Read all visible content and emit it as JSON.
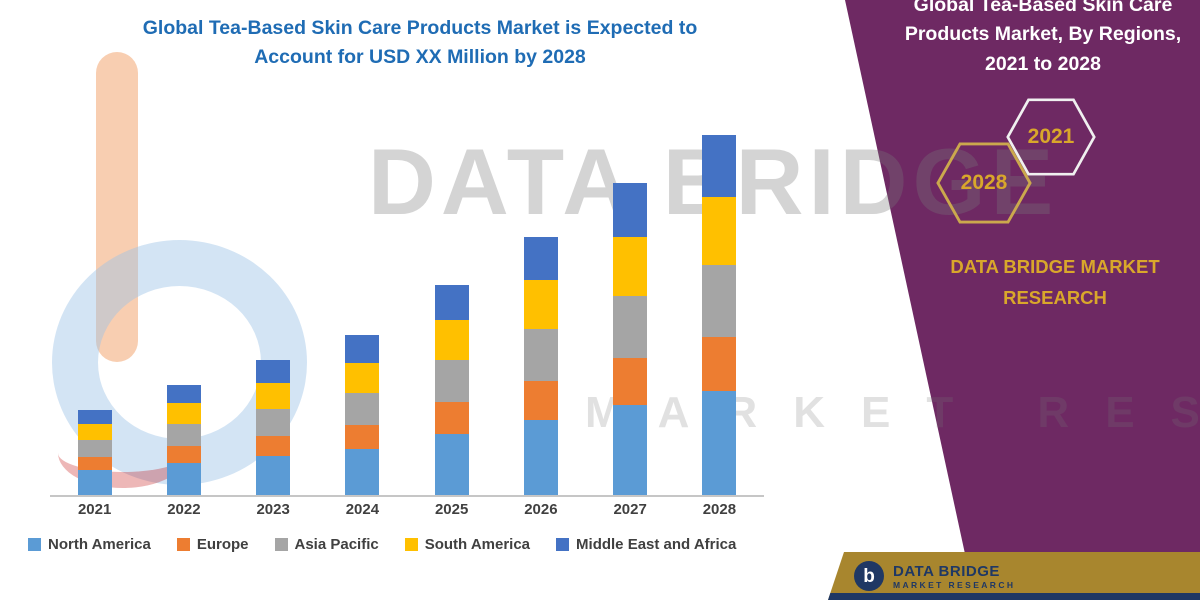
{
  "page": {
    "title_line1": "Global Tea-Based Skin Care Products Market is Expected to",
    "title_line2": "Account for USD XX Million by 2028"
  },
  "chart_data": {
    "type": "bar",
    "subtype": "stacked",
    "title": "Global Tea-Based Skin Care Products Market is Expected to Account for USD XX Million by 2028",
    "xlabel": "",
    "ylabel": "",
    "ylim": [
      0,
      400
    ],
    "y_axis_labels_visible": false,
    "grid": false,
    "legend_position": "bottom",
    "categories": [
      "2021",
      "2022",
      "2023",
      "2024",
      "2025",
      "2026",
      "2027",
      "2028"
    ],
    "series": [
      {
        "name": "North America",
        "color": "#5B9BD5",
        "values": [
          25,
          32,
          39,
          46,
          61,
          75,
          90,
          104
        ]
      },
      {
        "name": "Europe",
        "color": "#ED7D31",
        "values": [
          13,
          17,
          20,
          24,
          32,
          39,
          47,
          54
        ]
      },
      {
        "name": "Asia Pacific",
        "color": "#A5A5A5",
        "values": [
          17,
          22,
          27,
          32,
          42,
          52,
          62,
          72
        ]
      },
      {
        "name": "South America",
        "color": "#FFC000",
        "values": [
          16,
          21,
          26,
          30,
          40,
          49,
          59,
          68
        ]
      },
      {
        "name": "Middle East and Africa",
        "color": "#4472C4",
        "values": [
          14,
          18,
          23,
          28,
          35,
          43,
          54,
          62
        ]
      }
    ],
    "note": "Values are unlabeled in source (USD XX Million); series values estimated from relative bar heights"
  },
  "side_panel": {
    "title": "Global Tea-Based Skin Care Products Market, By Regions, 2021 to 2028",
    "hexagons": [
      "2028",
      "2021"
    ],
    "brand": "DATA BRIDGE MARKET RESEARCH",
    "background_color": "#6E2963",
    "accent_color": "#D9A72B"
  },
  "watermark": {
    "line1": "DATA BRIDGE",
    "line2": "MARKET RESEARCH"
  },
  "footer": {
    "logo_letter": "b",
    "brand_line1": "DATA BRIDGE",
    "brand_line2": "MARKET RESEARCH"
  }
}
